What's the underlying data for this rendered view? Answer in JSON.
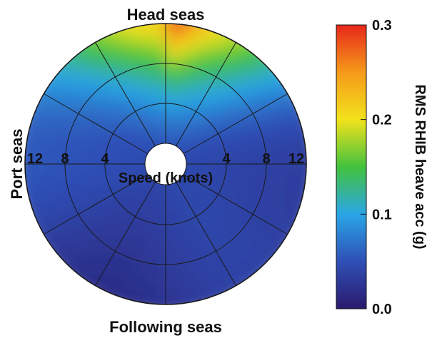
{
  "chart_data": {
    "type": "heatmap",
    "subtype": "polar",
    "direction_labels": {
      "top": "Head seas",
      "bottom": "Following seas",
      "left": "Port seas"
    },
    "radial_axis": {
      "label": "Speed (knots)",
      "ticks_left": [
        "12",
        "8",
        "4"
      ],
      "ticks_right": [
        "4",
        "8",
        "12"
      ],
      "range": [
        0,
        12
      ],
      "ring_values": [
        4,
        8,
        12
      ]
    },
    "angular_spokes_deg": [
      0,
      30,
      60,
      90,
      120,
      150,
      180,
      210,
      240,
      270,
      300,
      330
    ],
    "colorbar": {
      "label": "RMS RHIB heave acc (g)",
      "range": [
        0.0,
        0.3
      ],
      "tick_labels": [
        "0.3",
        "0.2",
        "0.1",
        "0.0"
      ],
      "tick_values": [
        0.3,
        0.2,
        0.1,
        0.0
      ],
      "colormap": [
        "#2a1a6e",
        "#2f4fb6",
        "#2aa6e6",
        "#43c23e",
        "#f2e21b",
        "#f59a1a",
        "#e8271b"
      ]
    },
    "field_samples": [
      {
        "position": "head seas, 12 knots",
        "value": 0.27
      },
      {
        "position": "head seas, 8 knots",
        "value": 0.2
      },
      {
        "position": "head seas, 4 knots",
        "value": 0.07
      },
      {
        "position": "starboard bow, 12 knots",
        "value": 0.2
      },
      {
        "position": "port bow, 12 knots",
        "value": 0.18
      },
      {
        "position": "beam seas, 12 knots",
        "value": 0.08
      },
      {
        "position": "beam seas, 4 knots",
        "value": 0.06
      },
      {
        "position": "following seas, 4 knots",
        "value": 0.05
      },
      {
        "position": "following seas, 12 knots",
        "value": 0.03
      }
    ]
  }
}
